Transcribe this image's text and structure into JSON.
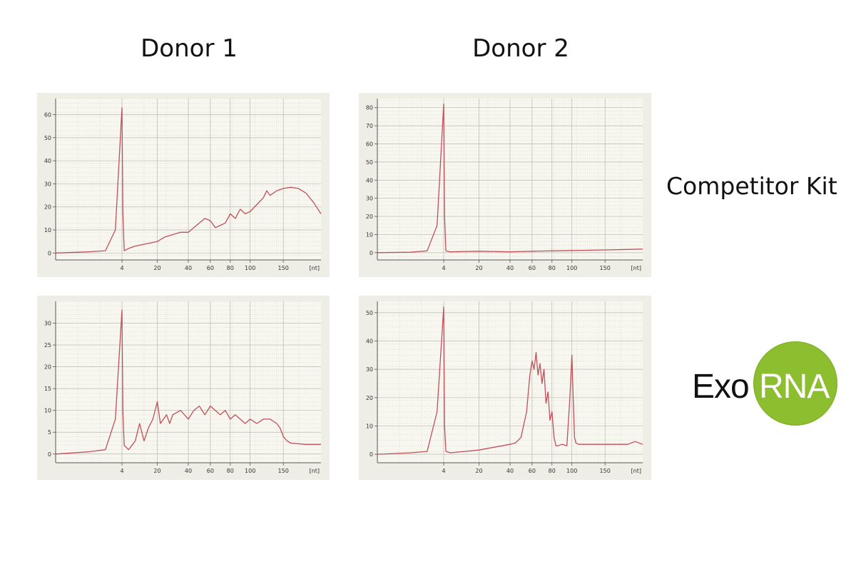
{
  "columns": [
    "Donor 1",
    "Donor 2"
  ],
  "row_labels": {
    "competitor": "Competitor Kit",
    "exo": "Exo",
    "rna": "RNA"
  },
  "logo": {
    "circle_color": "#8cbe2f",
    "text_color": "#ffffff"
  },
  "trace_color": "#c0505a",
  "chart_data": [
    {
      "type": "line",
      "title": "",
      "row": "Competitor Kit",
      "column": "Donor 1",
      "x_unit": "[nt]",
      "x_ticks": [
        "4",
        "20",
        "40",
        "60",
        "80",
        "100",
        "150"
      ],
      "y_ticks": [
        0,
        10,
        20,
        30,
        40,
        50,
        60
      ],
      "ylim": [
        -3,
        67
      ],
      "grid": true,
      "series": [
        {
          "x": [
            0,
            2,
            3,
            3.6,
            4,
            4.4,
            5,
            7,
            10,
            15,
            20,
            25,
            30,
            35,
            40,
            45,
            50,
            55,
            60,
            65,
            70,
            75,
            80,
            85,
            90,
            95,
            100,
            110,
            120,
            125,
            130,
            140,
            150,
            160,
            170,
            180,
            190,
            200
          ],
          "y": [
            0,
            0.5,
            1,
            10,
            63,
            18,
            1,
            2,
            3,
            4,
            5,
            7,
            8,
            9,
            9,
            11,
            13,
            15,
            14,
            11,
            12,
            13,
            17,
            15,
            19,
            17,
            18,
            21,
            24,
            27,
            25,
            27,
            28,
            28.5,
            28,
            26,
            22,
            17
          ]
        }
      ]
    },
    {
      "type": "line",
      "title": "",
      "row": "Competitor Kit",
      "column": "Donor 2",
      "x_unit": "[nt]",
      "x_ticks": [
        "4",
        "20",
        "40",
        "60",
        "80",
        "100",
        "150"
      ],
      "y_ticks": [
        0,
        10,
        20,
        30,
        40,
        50,
        60,
        70,
        80
      ],
      "ylim": [
        -4,
        85
      ],
      "grid": true,
      "series": [
        {
          "x": [
            0,
            2,
            3,
            3.6,
            4,
            4.4,
            5,
            7,
            20,
            40,
            60,
            80,
            100,
            120,
            150,
            180,
            200
          ],
          "y": [
            0,
            0.3,
            1,
            15,
            82,
            20,
            1,
            0.5,
            0.8,
            0.5,
            0.8,
            1.0,
            1.2,
            1.3,
            1.5,
            1.8,
            2
          ]
        }
      ]
    },
    {
      "type": "line",
      "title": "",
      "row": "ExoRNA",
      "column": "Donor 1",
      "x_unit": "[nt]",
      "x_ticks": [
        "4",
        "20",
        "40",
        "60",
        "80",
        "100",
        "150"
      ],
      "y_ticks": [
        0,
        5,
        10,
        15,
        20,
        25,
        30
      ],
      "ylim": [
        -2,
        35
      ],
      "grid": true,
      "series": [
        {
          "x": [
            0,
            2,
            3,
            3.6,
            4,
            4.4,
            5,
            7,
            10,
            12,
            14,
            16,
            18,
            20,
            22,
            24,
            26,
            28,
            30,
            35,
            40,
            45,
            50,
            55,
            60,
            65,
            70,
            75,
            80,
            85,
            90,
            95,
            100,
            110,
            120,
            130,
            140,
            145,
            150,
            155,
            160,
            180,
            200
          ],
          "y": [
            0,
            0.5,
            1,
            8,
            33,
            10,
            2,
            1,
            3,
            7,
            3,
            6,
            8,
            12,
            7,
            8,
            9,
            7,
            9,
            10,
            8,
            10,
            11,
            9,
            11,
            10,
            9,
            10,
            8,
            9,
            8,
            7,
            8,
            7,
            8,
            8,
            7,
            6,
            4,
            3,
            2.5,
            2.2,
            2.2
          ]
        }
      ]
    },
    {
      "type": "line",
      "title": "",
      "row": "ExoRNA",
      "column": "Donor 2",
      "x_unit": "[nt]",
      "x_ticks": [
        "4",
        "20",
        "40",
        "60",
        "80",
        "100",
        "150"
      ],
      "y_ticks": [
        0,
        10,
        20,
        30,
        40,
        50
      ],
      "ylim": [
        -3,
        54
      ],
      "grid": true,
      "series": [
        {
          "x": [
            0,
            2,
            3,
            3.6,
            4,
            4.4,
            5,
            7,
            20,
            30,
            40,
            45,
            50,
            55,
            58,
            60,
            62,
            64,
            66,
            68,
            70,
            72,
            74,
            76,
            78,
            80,
            82,
            84,
            86,
            90,
            95,
            98,
            100,
            102,
            104,
            106,
            110,
            120,
            150,
            180,
            190,
            200
          ],
          "y": [
            0,
            0.5,
            1,
            15,
            52,
            10,
            1,
            0.5,
            1.5,
            2.5,
            3.5,
            4,
            6,
            15,
            28,
            33,
            30,
            36,
            28,
            32,
            25,
            30,
            18,
            22,
            12,
            15,
            6,
            3,
            3,
            3.5,
            3,
            20,
            35,
            20,
            6,
            4,
            3.5,
            3.5,
            3.5,
            3.5,
            4.5,
            3.5
          ]
        }
      ]
    }
  ]
}
